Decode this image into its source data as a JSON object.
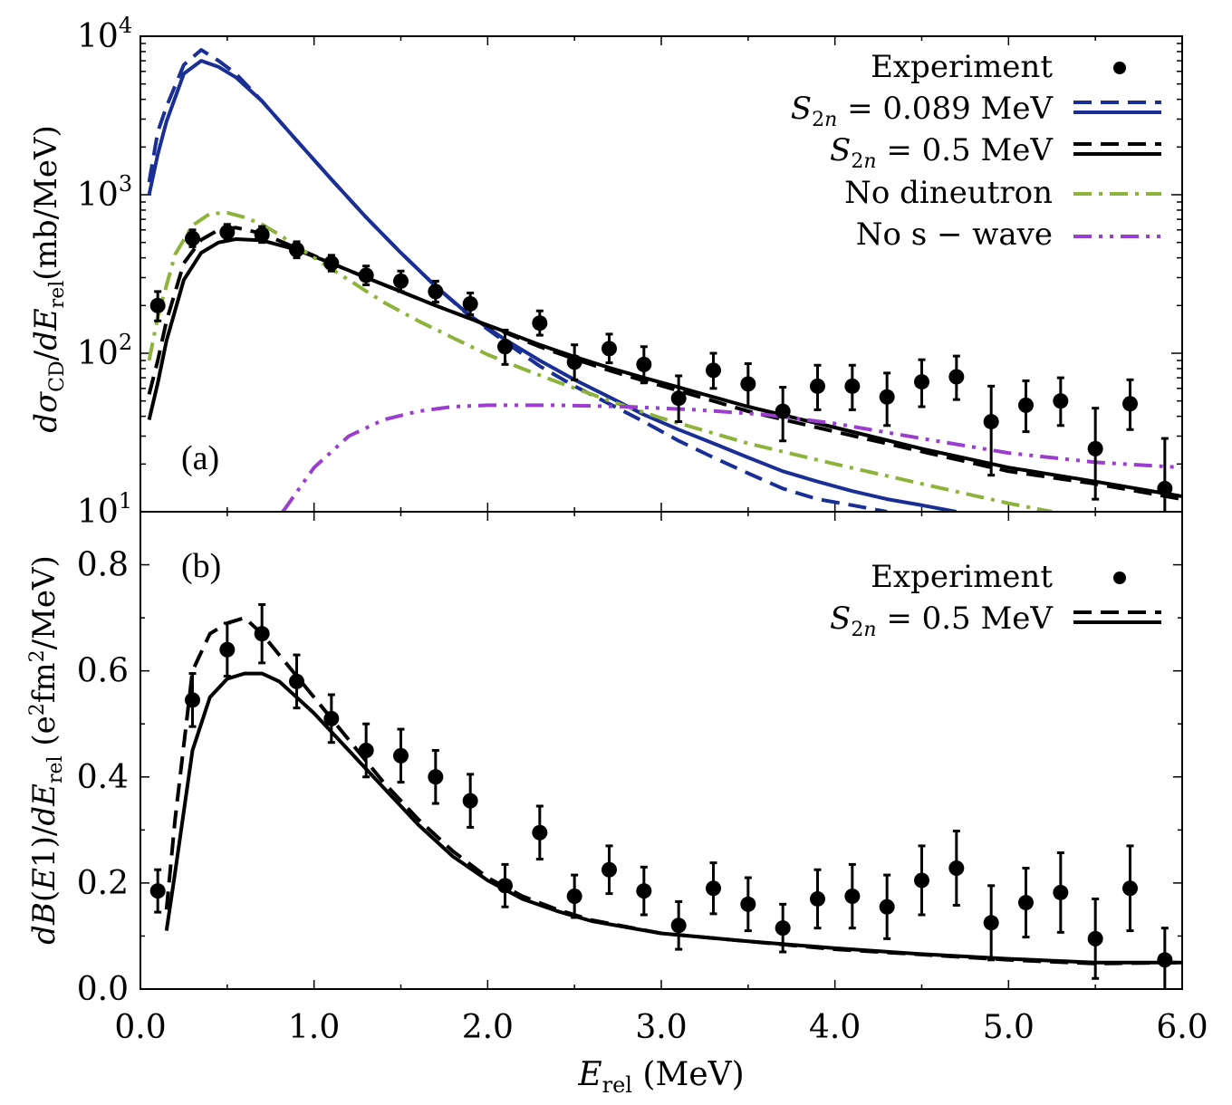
{
  "chart_data": [
    {
      "type": "line",
      "panel_label": "(a)",
      "yscale": "log",
      "ylabel": "dσCD/dErel(mb/MeV)",
      "ylim": [
        10,
        10000
      ],
      "yticks": [
        {
          "value": 10,
          "base": "10",
          "exp": "1"
        },
        {
          "value": 100,
          "base": "10",
          "exp": "2"
        },
        {
          "value": 1000,
          "base": "10",
          "exp": "3"
        },
        {
          "value": 10000,
          "base": "10",
          "exp": "4"
        }
      ],
      "experiment": {
        "name": "Experiment",
        "x": [
          0.1,
          0.3,
          0.5,
          0.7,
          0.9,
          1.1,
          1.3,
          1.5,
          1.7,
          1.9,
          2.1,
          2.3,
          2.5,
          2.7,
          2.9,
          3.1,
          3.3,
          3.5,
          3.7,
          3.9,
          4.1,
          4.3,
          4.5,
          4.7,
          4.9,
          5.1,
          5.3,
          5.5,
          5.7,
          5.9
        ],
        "y": [
          200,
          530,
          580,
          560,
          450,
          370,
          310,
          285,
          245,
          205,
          110,
          155,
          88,
          107,
          85,
          52,
          78,
          64,
          43,
          62,
          62,
          53,
          66,
          71,
          37,
          47,
          50,
          25,
          48,
          14
        ],
        "err_lo": [
          40,
          60,
          60,
          60,
          50,
          40,
          40,
          40,
          35,
          30,
          25,
          25,
          20,
          20,
          20,
          15,
          18,
          18,
          15,
          18,
          18,
          18,
          20,
          20,
          20,
          15,
          15,
          13,
          15,
          10
        ],
        "err_hi": [
          45,
          70,
          70,
          70,
          55,
          45,
          45,
          45,
          40,
          35,
          30,
          30,
          25,
          25,
          25,
          20,
          22,
          22,
          18,
          22,
          22,
          22,
          25,
          25,
          25,
          20,
          20,
          20,
          20,
          15
        ]
      },
      "series": [
        {
          "name": "S2n = 0.089 MeV (dashed)",
          "color": "#1a2f96",
          "style": "dashed",
          "x": [
            0.05,
            0.1,
            0.15,
            0.25,
            0.35,
            0.45,
            0.55,
            0.7,
            0.9,
            1.1,
            1.3,
            1.5,
            1.7,
            1.9,
            2.1,
            2.3,
            2.5,
            2.7,
            2.9,
            3.1,
            3.3,
            3.5,
            3.7,
            3.9,
            4.1,
            4.3
          ],
          "y": [
            1200,
            2500,
            3600,
            6600,
            8200,
            7000,
            5800,
            3900,
            2200,
            1250,
            720,
            430,
            265,
            170,
            118,
            83,
            62,
            48,
            37,
            28,
            22,
            17.5,
            14,
            12,
            11,
            10
          ]
        },
        {
          "name": "S2n = 0.089 MeV (solid)",
          "color": "#1a2f96",
          "style": "solid",
          "x": [
            0.05,
            0.1,
            0.15,
            0.25,
            0.35,
            0.45,
            0.55,
            0.7,
            0.9,
            1.1,
            1.3,
            1.5,
            1.7,
            1.9,
            2.1,
            2.3,
            2.5,
            2.7,
            2.9,
            3.1,
            3.3,
            3.5,
            3.7,
            3.9,
            4.1,
            4.3,
            4.5,
            4.7
          ],
          "y": [
            1000,
            1800,
            2900,
            5800,
            7000,
            6400,
            5500,
            3900,
            2200,
            1250,
            720,
            430,
            265,
            172,
            122,
            90,
            68,
            53,
            41,
            33,
            27,
            22,
            18,
            15.5,
            13.5,
            12,
            11,
            10
          ]
        },
        {
          "name": "S2n = 0.5 MeV (dashed)",
          "color": "#000000",
          "style": "dashed",
          "x": [
            0.05,
            0.1,
            0.15,
            0.25,
            0.35,
            0.45,
            0.55,
            0.7,
            0.9,
            1.1,
            1.3,
            1.5,
            1.7,
            1.9,
            2.1,
            2.3,
            2.5,
            2.7,
            2.9,
            3.1,
            3.5,
            4.0,
            4.5,
            5.0,
            5.5,
            6.0
          ],
          "y": [
            55,
            90,
            160,
            370,
            520,
            600,
            620,
            570,
            460,
            370,
            300,
            245,
            200,
            165,
            135,
            110,
            92,
            78,
            67,
            58,
            43,
            32,
            24,
            18,
            15,
            12
          ]
        },
        {
          "name": "S2n = 0.5 MeV (solid)",
          "color": "#000000",
          "style": "solid",
          "x": [
            0.05,
            0.1,
            0.15,
            0.25,
            0.35,
            0.45,
            0.55,
            0.7,
            0.9,
            1.1,
            1.3,
            1.5,
            1.7,
            1.9,
            2.1,
            2.3,
            2.5,
            2.7,
            2.9,
            3.1,
            3.5,
            4.0,
            4.5,
            5.0,
            5.5,
            6.0
          ],
          "y": [
            38,
            65,
            120,
            290,
            430,
            500,
            525,
            515,
            450,
            370,
            300,
            245,
            200,
            165,
            137,
            113,
            95,
            81,
            70,
            61,
            46,
            34,
            25,
            19,
            15.5,
            12.5
          ]
        },
        {
          "name": "No dineutron",
          "color": "#8db33a",
          "style": "dashdot",
          "x": [
            0.05,
            0.1,
            0.2,
            0.3,
            0.4,
            0.5,
            0.6,
            0.7,
            0.8,
            1.0,
            1.2,
            1.4,
            1.6,
            1.8,
            2.0,
            2.2,
            2.4,
            2.6,
            2.8,
            3.0,
            3.5,
            4.0,
            4.5,
            5.0,
            5.25
          ],
          "y": [
            90,
            170,
            420,
            640,
            760,
            770,
            720,
            650,
            560,
            400,
            290,
            210,
            160,
            125,
            98,
            80,
            66,
            55,
            46,
            39,
            27,
            20,
            15,
            11.3,
            10
          ]
        },
        {
          "name": "No s − wave",
          "color": "#9b3ecf",
          "style": "dashdotdot",
          "x": [
            0.82,
            1.0,
            1.2,
            1.4,
            1.6,
            1.8,
            2.0,
            2.4,
            2.8,
            3.2,
            3.6,
            4.0,
            4.5,
            5.0,
            5.5,
            6.0
          ],
          "y": [
            10,
            19,
            30,
            38,
            43,
            46,
            47,
            47,
            46,
            44,
            41,
            36,
            29,
            23.5,
            20.5,
            19
          ]
        }
      ],
      "legend": {
        "position": "top-right",
        "entries": [
          "Experiment",
          "S2n = 0.089 MeV",
          "S2n = 0.5 MeV",
          "No dineutron",
          "No s − wave"
        ]
      }
    },
    {
      "type": "line",
      "panel_label": "(b)",
      "yscale": "linear",
      "ylabel": "dB(E1)/dErel (e2fm2/MeV)",
      "ylim": [
        0.0,
        0.9
      ],
      "yticks": [
        "0.0",
        "0.2",
        "0.4",
        "0.6",
        "0.8"
      ],
      "xlabel": "Erel (MeV)",
      "xlim": [
        0.0,
        6.0
      ],
      "xticks": [
        "0.0",
        "1.0",
        "2.0",
        "3.0",
        "4.0",
        "5.0",
        "6.0"
      ],
      "experiment": {
        "name": "Experiment",
        "x": [
          0.1,
          0.3,
          0.5,
          0.7,
          0.9,
          1.1,
          1.3,
          1.5,
          1.7,
          1.9,
          2.1,
          2.3,
          2.5,
          2.7,
          2.9,
          3.1,
          3.3,
          3.5,
          3.7,
          3.9,
          4.1,
          4.3,
          4.5,
          4.7,
          4.9,
          5.1,
          5.3,
          5.5,
          5.7,
          5.9
        ],
        "y": [
          0.185,
          0.545,
          0.64,
          0.67,
          0.58,
          0.51,
          0.45,
          0.44,
          0.4,
          0.355,
          0.195,
          0.295,
          0.175,
          0.225,
          0.185,
          0.12,
          0.19,
          0.16,
          0.115,
          0.17,
          0.175,
          0.155,
          0.205,
          0.228,
          0.125,
          0.163,
          0.182,
          0.095,
          0.19,
          0.055
        ],
        "err": [
          0.04,
          0.05,
          0.05,
          0.055,
          0.05,
          0.045,
          0.05,
          0.05,
          0.05,
          0.05,
          0.04,
          0.05,
          0.04,
          0.045,
          0.045,
          0.045,
          0.048,
          0.05,
          0.045,
          0.055,
          0.06,
          0.06,
          0.065,
          0.07,
          0.07,
          0.065,
          0.075,
          0.075,
          0.08,
          0.06
        ]
      },
      "series": [
        {
          "name": "S2n = 0.5 MeV (dashed)",
          "color": "#000000",
          "style": "dashed",
          "x": [
            0.15,
            0.2,
            0.3,
            0.4,
            0.5,
            0.6,
            0.7,
            0.8,
            0.9,
            1.0,
            1.2,
            1.4,
            1.6,
            1.8,
            2.0,
            2.2,
            2.4,
            2.6,
            3.0,
            3.5,
            4.0,
            4.5,
            5.0,
            5.5,
            6.0
          ],
          "y": [
            0.15,
            0.32,
            0.6,
            0.67,
            0.69,
            0.7,
            0.67,
            0.63,
            0.59,
            0.55,
            0.47,
            0.39,
            0.32,
            0.26,
            0.21,
            0.175,
            0.15,
            0.13,
            0.105,
            0.09,
            0.075,
            0.065,
            0.055,
            0.048,
            0.05
          ]
        },
        {
          "name": "S2n = 0.5 MeV (solid)",
          "color": "#000000",
          "style": "solid",
          "x": [
            0.15,
            0.2,
            0.3,
            0.4,
            0.5,
            0.6,
            0.7,
            0.8,
            0.9,
            1.0,
            1.2,
            1.4,
            1.6,
            1.8,
            2.0,
            2.2,
            2.4,
            2.6,
            3.0,
            3.5,
            4.0,
            4.5,
            5.0,
            5.5,
            6.0
          ],
          "y": [
            0.11,
            0.22,
            0.45,
            0.55,
            0.585,
            0.595,
            0.595,
            0.58,
            0.55,
            0.52,
            0.45,
            0.38,
            0.31,
            0.25,
            0.205,
            0.17,
            0.147,
            0.128,
            0.105,
            0.09,
            0.077,
            0.066,
            0.057,
            0.05,
            0.05
          ]
        }
      ],
      "legend": {
        "position": "top-right",
        "entries": [
          "Experiment",
          "S2n = 0.5 MeV"
        ]
      }
    }
  ]
}
